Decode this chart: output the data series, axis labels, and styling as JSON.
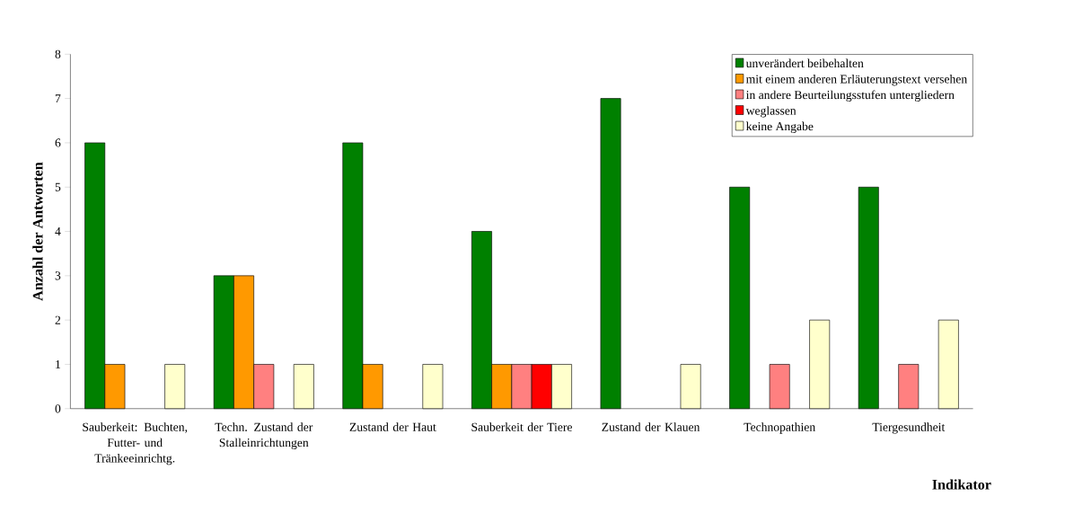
{
  "chart_data": {
    "type": "bar",
    "xlabel": "Indikator",
    "ylabel": "Anzahl der Antworten",
    "categories": [
      "Sauberkeit: Buchten, Futter- und Tränkeeinrichtg.",
      "Techn. Zustand der Stalleinrichtungen",
      "Zustand der Haut",
      "Sauberkeit der Tiere",
      "Zustand der Klauen",
      "Technopathien",
      "Tiergesundheit"
    ],
    "series": [
      {
        "name": "unverändert beibehalten",
        "color": "#008000",
        "values": [
          6,
          3,
          6,
          4,
          7,
          5,
          5
        ]
      },
      {
        "name": "mit einem anderen Erläuterungstext versehen",
        "color": "#ff9900",
        "values": [
          1,
          3,
          1,
          1,
          null,
          null,
          null
        ]
      },
      {
        "name": "in andere Beurteilungsstufen untergliedern",
        "color": "#ff8080",
        "values": [
          null,
          1,
          null,
          1,
          null,
          1,
          1
        ]
      },
      {
        "name": "weglassen",
        "color": "#ff0000",
        "values": [
          null,
          null,
          null,
          1,
          null,
          null,
          null
        ]
      },
      {
        "name": "keine Angabe",
        "color": "#ffffcc",
        "values": [
          1,
          1,
          1,
          1,
          1,
          2,
          2
        ]
      }
    ],
    "ylim": [
      0,
      8
    ],
    "yticks": [
      0,
      1,
      2,
      3,
      4,
      5,
      6,
      7,
      8
    ],
    "grid": false,
    "legend": "top right"
  }
}
